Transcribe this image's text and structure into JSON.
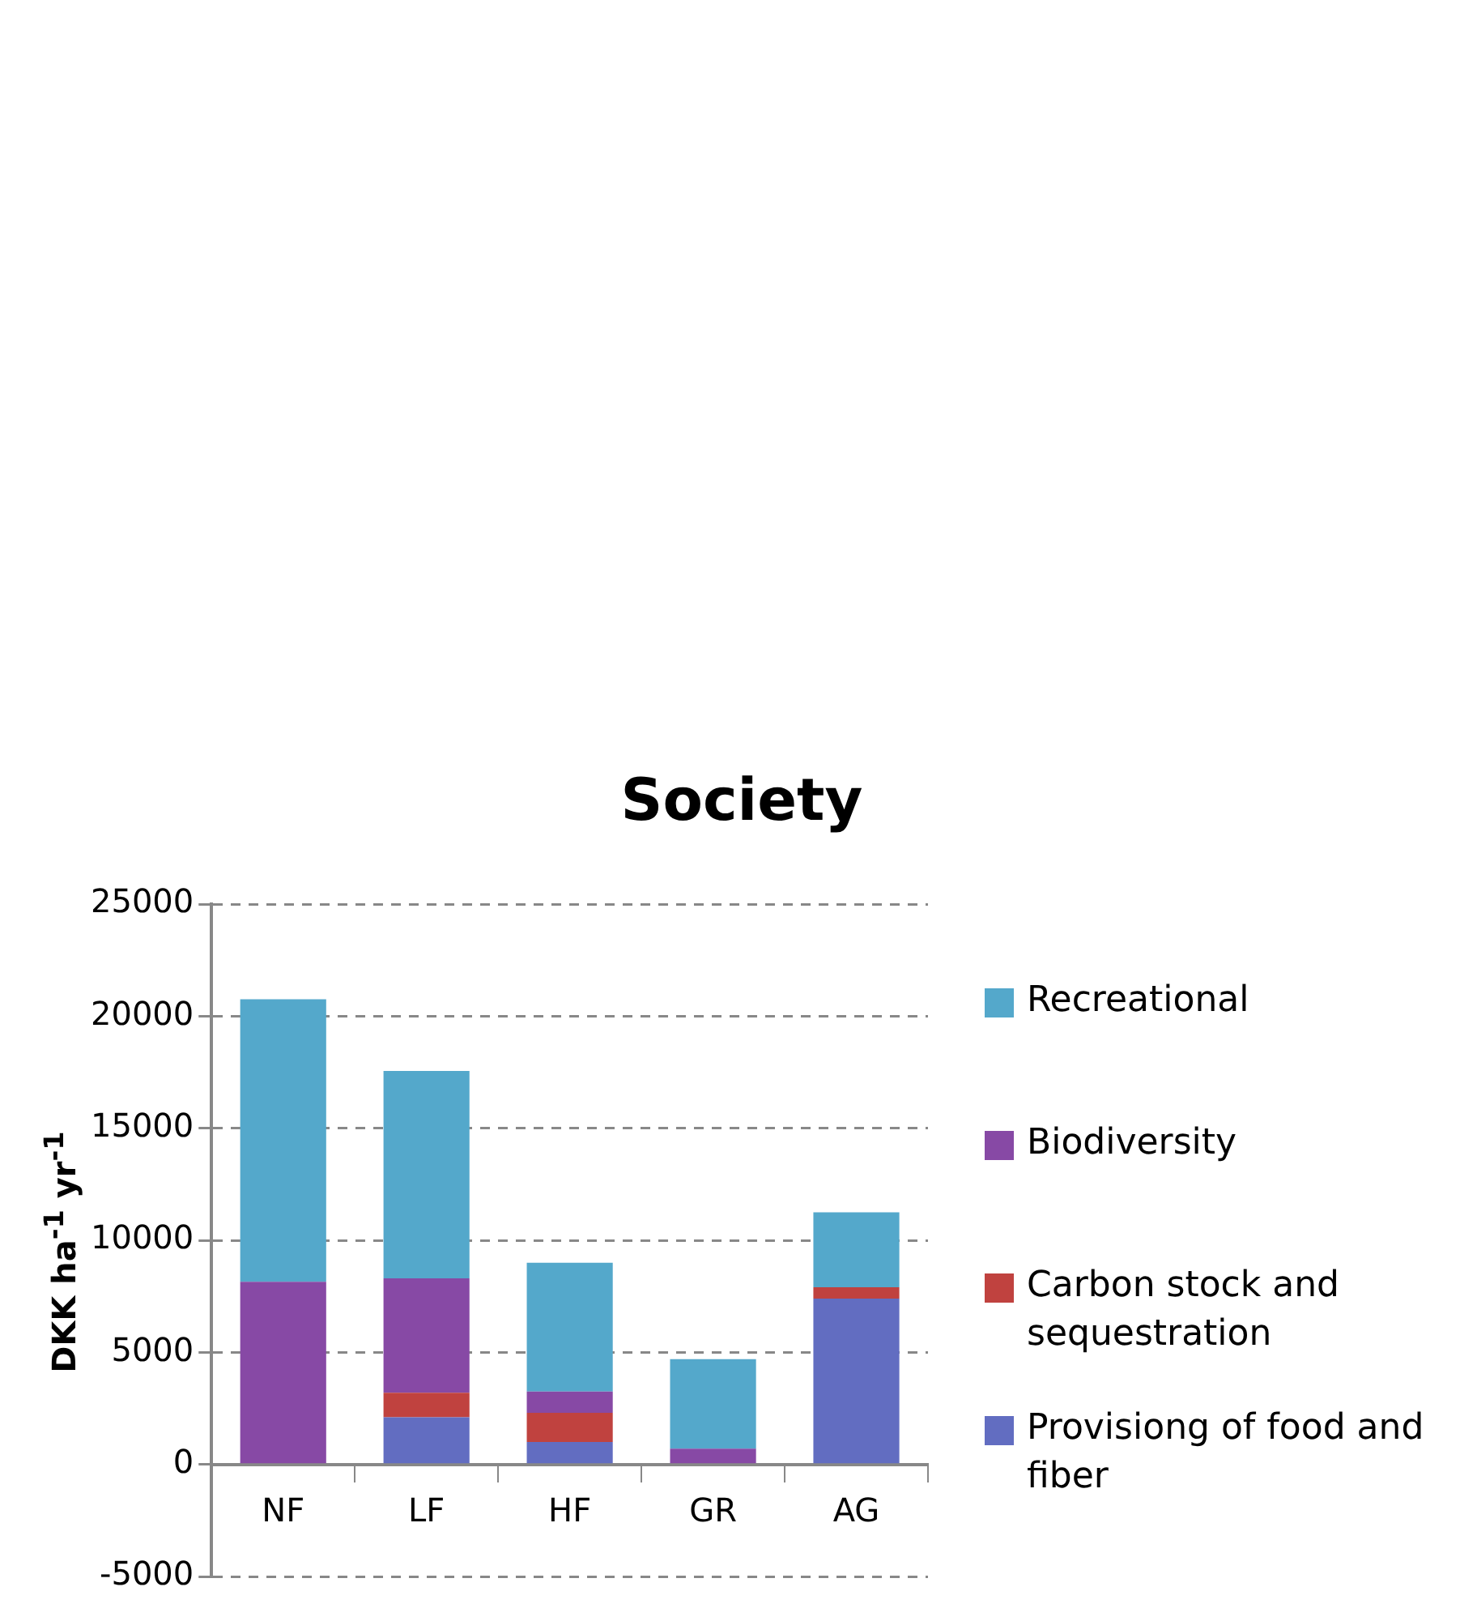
{
  "chart_data": {
    "type": "bar",
    "title": "Society",
    "ylabel": "DKK ha$^{-1}$ yr$^{-1}$",
    "categories": [
      "NF",
      "LF",
      "HF",
      "GR",
      "AG"
    ],
    "stacked": true,
    "series": [
      {
        "name": "Provisiong of food and fiber",
        "color": "#626dc1",
        "values": [
          0,
          2100,
          1000,
          0,
          7400
        ]
      },
      {
        "name": "Carbon stock and sequestration",
        "color": "#c0423f",
        "values": [
          0,
          1100,
          1300,
          0,
          500
        ]
      },
      {
        "name": "Biodiversity",
        "color": "#8749a5",
        "values": [
          8150,
          5100,
          950,
          700,
          0
        ]
      },
      {
        "name": "Recreational",
        "color": "#54a8cb",
        "values": [
          12600,
          9250,
          5750,
          4000,
          3350
        ]
      }
    ],
    "ylim": [
      -5000,
      25000
    ],
    "yticks": [
      -5000,
      0,
      5000,
      10000,
      15000,
      20000,
      25000
    ],
    "grid": "y",
    "legend": "right"
  }
}
